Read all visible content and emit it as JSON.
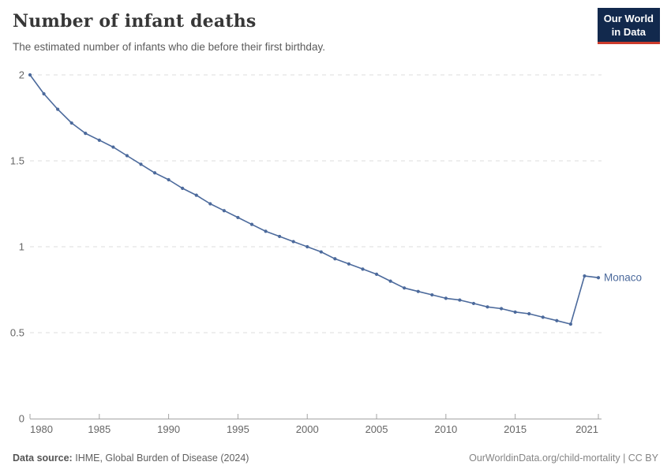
{
  "header": {
    "title": "Number of infant deaths",
    "subtitle": "The estimated number of infants who die before their first birthday.",
    "logo": {
      "line1": "Our World",
      "line2": "in Data"
    }
  },
  "footer": {
    "source_label": "Data source:",
    "source_text": "IHME, Global Burden of Disease (2024)",
    "link_text": "OurWorldinData.org/child-mortality | CC BY"
  },
  "colors": {
    "line": "#4C6A9C",
    "entity_label": "#4C6A9C",
    "grid": "#dcdcdc",
    "axis": "#a3a3a3",
    "tick_label": "#666666",
    "logo_bg": "#12294d",
    "logo_accent": "#cc3b2c"
  },
  "chart_data": {
    "type": "line",
    "title": "Number of infant deaths",
    "subtitle": "The estimated number of infants who die before their first birthday.",
    "xlabel": "",
    "ylabel": "",
    "xlim": [
      1980,
      2021
    ],
    "ylim": [
      0,
      2
    ],
    "grid": "horizontal-dashed",
    "legend_position": "end-of-line-label",
    "x_ticks": [
      1980,
      1985,
      1990,
      1995,
      2000,
      2005,
      2010,
      2015,
      2021
    ],
    "y_ticks": [
      0,
      0.5,
      1,
      1.5,
      2
    ],
    "y_tick_labels": [
      "0",
      "0.5",
      "1",
      "1.5",
      "2"
    ],
    "series": [
      {
        "name": "Monaco",
        "x": [
          1980,
          1981,
          1982,
          1983,
          1984,
          1985,
          1986,
          1987,
          1988,
          1989,
          1990,
          1991,
          1992,
          1993,
          1994,
          1995,
          1996,
          1997,
          1998,
          1999,
          2000,
          2001,
          2002,
          2003,
          2004,
          2005,
          2006,
          2007,
          2008,
          2009,
          2010,
          2011,
          2012,
          2013,
          2014,
          2015,
          2016,
          2017,
          2018,
          2019,
          2020,
          2021
        ],
        "values": [
          2.0,
          1.89,
          1.8,
          1.72,
          1.66,
          1.62,
          1.58,
          1.53,
          1.48,
          1.43,
          1.39,
          1.34,
          1.3,
          1.25,
          1.21,
          1.17,
          1.13,
          1.09,
          1.06,
          1.03,
          1.0,
          0.97,
          0.93,
          0.9,
          0.87,
          0.84,
          0.8,
          0.76,
          0.74,
          0.72,
          0.7,
          0.69,
          0.67,
          0.65,
          0.64,
          0.62,
          0.61,
          0.59,
          0.57,
          0.55,
          0.83,
          0.82
        ]
      }
    ]
  }
}
